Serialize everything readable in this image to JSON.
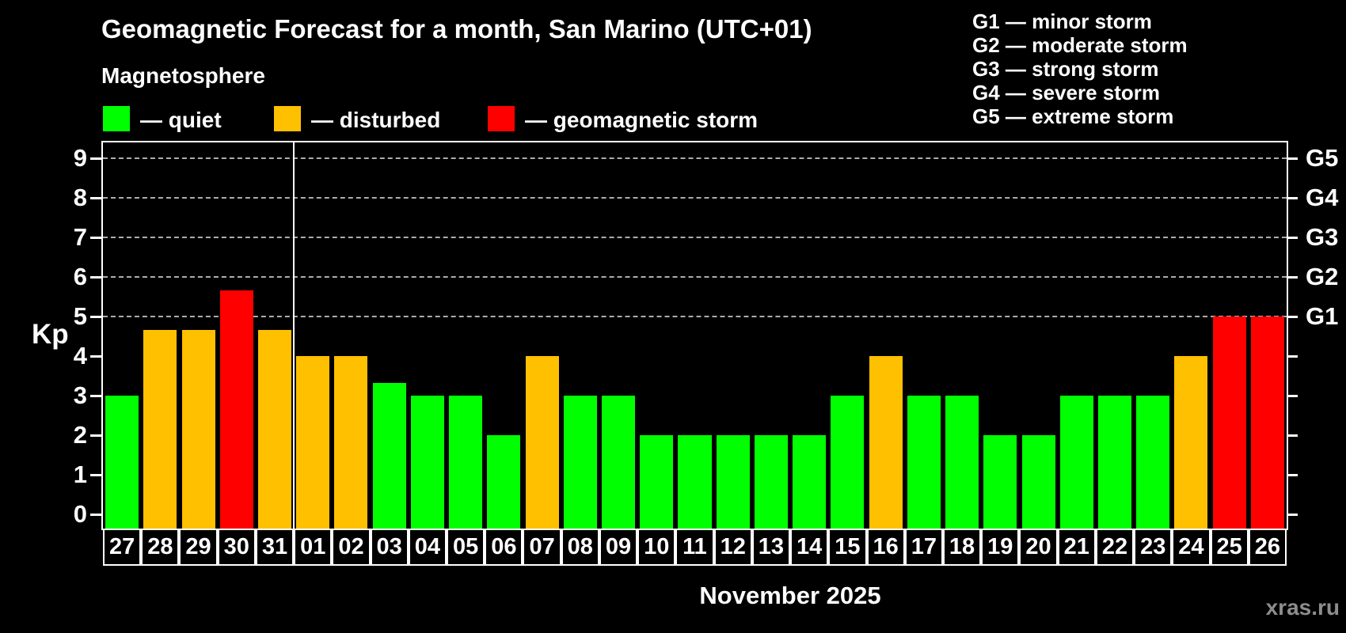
{
  "chart_data": {
    "type": "bar",
    "title": "Geomagnetic Forecast for a month, San Marino (UTC+01)",
    "subtitle": "Magnetosphere",
    "legend": [
      {
        "status": "quiet",
        "label": "— quiet"
      },
      {
        "status": "disturbed",
        "label": "— disturbed"
      },
      {
        "status": "storm",
        "label": "— geomagnetic storm"
      }
    ],
    "status_colors": {
      "quiet": "#00ff00",
      "disturbed": "#ffc000",
      "storm": "#ff0000"
    },
    "g_scale_legend": [
      "G1 — minor storm",
      "G2 — moderate storm",
      "G3 — strong storm",
      "G4 — severe storm",
      "G5 — extreme storm"
    ],
    "categories": [
      "27",
      "28",
      "29",
      "30",
      "31",
      "01",
      "02",
      "03",
      "04",
      "05",
      "06",
      "07",
      "08",
      "09",
      "10",
      "11",
      "12",
      "13",
      "14",
      "15",
      "16",
      "17",
      "18",
      "19",
      "20",
      "21",
      "22",
      "23",
      "24",
      "25",
      "26"
    ],
    "values": [
      3,
      4.67,
      4.67,
      5.67,
      4.67,
      4,
      4,
      3.33,
      3,
      3,
      2,
      4,
      3,
      3,
      2,
      2,
      2,
      2,
      2,
      3,
      4,
      3,
      3,
      2,
      2,
      3,
      3,
      3,
      4,
      5,
      5
    ],
    "statuses": [
      "quiet",
      "disturbed",
      "disturbed",
      "storm",
      "disturbed",
      "disturbed",
      "disturbed",
      "quiet",
      "quiet",
      "quiet",
      "quiet",
      "disturbed",
      "quiet",
      "quiet",
      "quiet",
      "quiet",
      "quiet",
      "quiet",
      "quiet",
      "quiet",
      "disturbed",
      "quiet",
      "quiet",
      "quiet",
      "quiet",
      "quiet",
      "quiet",
      "quiet",
      "disturbed",
      "storm",
      "storm"
    ],
    "month_separator_before": "01",
    "y_axis": {
      "label": "Kp",
      "ticks": [
        "0",
        "1",
        "2",
        "3",
        "4",
        "5",
        "6",
        "7",
        "8",
        "9"
      ],
      "ylim": [
        0,
        9
      ]
    },
    "right_axis": {
      "ticks": [
        {
          "label": "G1",
          "kp": 5
        },
        {
          "label": "G2",
          "kp": 6
        },
        {
          "label": "G3",
          "kp": 7
        },
        {
          "label": "G4",
          "kp": 8
        },
        {
          "label": "G5",
          "kp": 9
        }
      ]
    },
    "xlabel": "November 2025",
    "grid": "dashed horizontal gray lines at Kp 5–9, legend top",
    "legend_position": "top-left"
  },
  "watermark": "xras.ru"
}
